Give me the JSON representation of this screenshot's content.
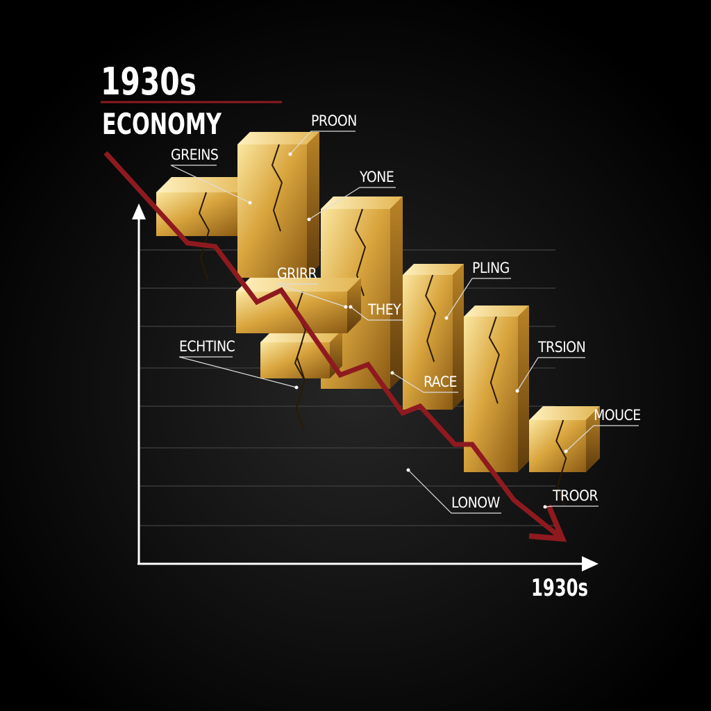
{
  "title": "1930s",
  "subtitle": "ECONOMY",
  "x_axis_label": "1930s",
  "labels": [
    "GREINS",
    "PROON",
    "YONE",
    "GRIRR",
    "THEY",
    "PLING",
    "ECHTINC",
    "RACE",
    "TRSION",
    "MOUCE",
    "LONOW",
    "TROOR"
  ]
}
